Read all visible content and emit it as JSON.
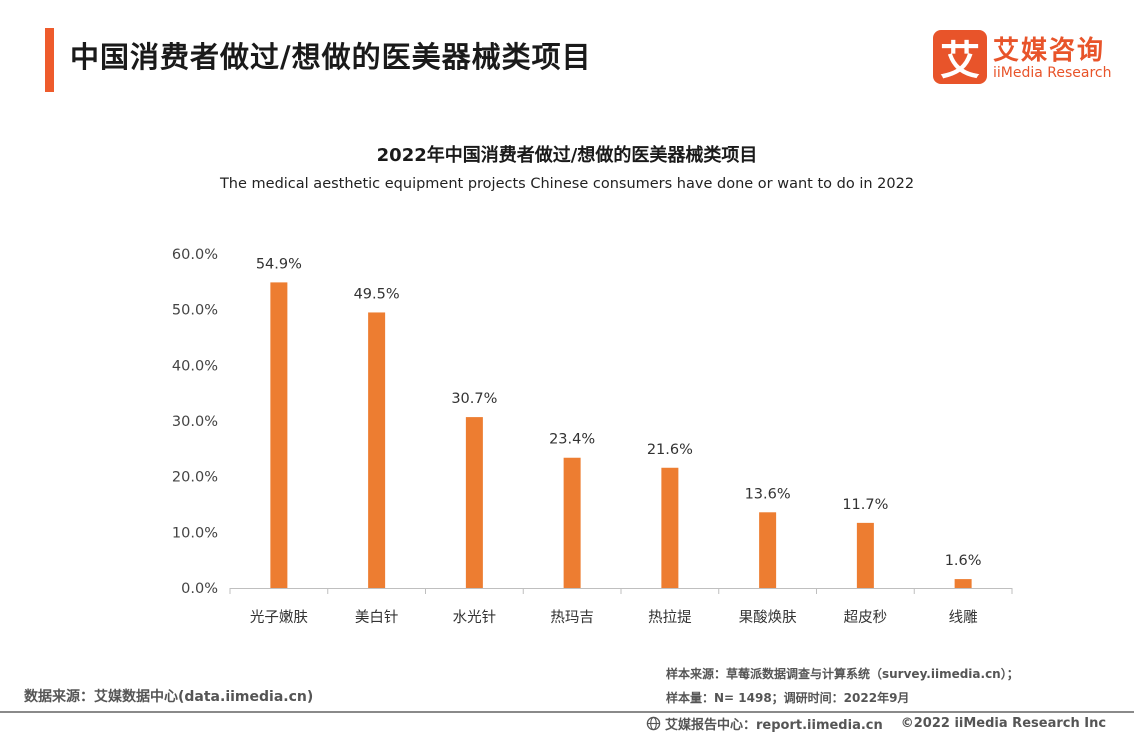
{
  "header": {
    "title": "中国消费者做过/想做的医美器械类项目",
    "logo_cn": "艾媒咨询",
    "logo_en": "iiMedia Research",
    "logo_mark": "艾"
  },
  "colors": {
    "accent": "#ee5b2c",
    "bar": "#ed7d31",
    "brand": "#e8542a"
  },
  "chart_data": {
    "type": "bar",
    "title": "2022年中国消费者做过/想做的医美器械类项目",
    "subtitle": "The medical aesthetic equipment projects Chinese consumers have done or want to do in 2022",
    "categories": [
      "光子嫩肤",
      "美白针",
      "水光针",
      "热玛吉",
      "热拉提",
      "果酸焕肤",
      "超皮秒",
      "线雕"
    ],
    "values": [
      54.9,
      49.5,
      30.7,
      23.4,
      21.6,
      13.6,
      11.7,
      1.6
    ],
    "value_labels": [
      "54.9%",
      "49.5%",
      "30.7%",
      "23.4%",
      "21.6%",
      "13.6%",
      "11.7%",
      "1.6%"
    ],
    "yticks": [
      0,
      10,
      20,
      30,
      40,
      50,
      60
    ],
    "ytick_labels": [
      "0.0%",
      "10.0%",
      "20.0%",
      "30.0%",
      "40.0%",
      "50.0%",
      "60.0%"
    ],
    "ylim": [
      0,
      60
    ],
    "xlabel": "",
    "ylabel": "",
    "grid": false,
    "legend": "none"
  },
  "footer": {
    "data_source": "数据来源：艾媒数据中心(data.iimedia.cn)",
    "sample_source": "样本来源：草莓派数据调查与计算系统（survey.iimedia.cn）；",
    "sample_size": "样本量：N= 1498；调研时间：2022年9月",
    "report_center": "艾媒报告中心：report.iimedia.cn",
    "copyright": "©2022  iiMedia Research  Inc"
  }
}
